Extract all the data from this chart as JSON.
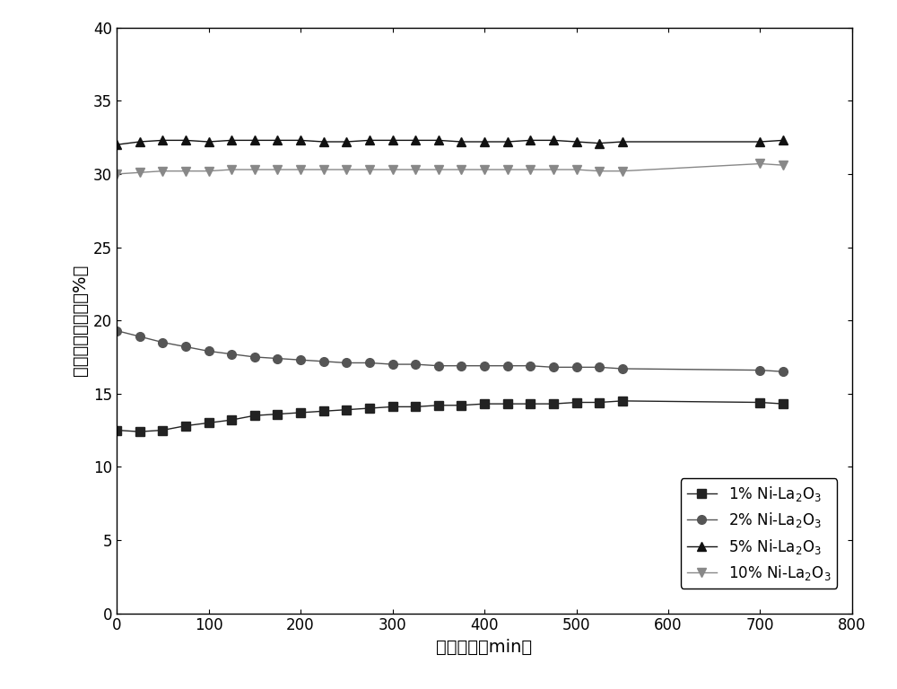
{
  "xlabel": "反应时间（min）",
  "ylabel": "二氧化碳转化率（%）",
  "xlim": [
    0,
    800
  ],
  "ylim": [
    0,
    40
  ],
  "xticks": [
    0,
    100,
    200,
    300,
    400,
    500,
    600,
    700,
    800
  ],
  "yticks": [
    0,
    5,
    10,
    15,
    20,
    25,
    30,
    35,
    40
  ],
  "series": [
    {
      "label": "1% Ni-La$_2$O$_3$",
      "color": "#222222",
      "marker": "s",
      "x": [
        0,
        25,
        50,
        75,
        100,
        125,
        150,
        175,
        200,
        225,
        250,
        275,
        300,
        325,
        350,
        375,
        400,
        425,
        450,
        475,
        500,
        525,
        550,
        700,
        725
      ],
      "y": [
        12.5,
        12.4,
        12.5,
        12.8,
        13.0,
        13.2,
        13.5,
        13.6,
        13.7,
        13.8,
        13.9,
        14.0,
        14.1,
        14.1,
        14.2,
        14.2,
        14.3,
        14.3,
        14.3,
        14.3,
        14.4,
        14.4,
        14.5,
        14.4,
        14.3
      ]
    },
    {
      "label": "2% Ni-La$_2$O$_3$",
      "color": "#555555",
      "marker": "o",
      "x": [
        0,
        25,
        50,
        75,
        100,
        125,
        150,
        175,
        200,
        225,
        250,
        275,
        300,
        325,
        350,
        375,
        400,
        425,
        450,
        475,
        500,
        525,
        550,
        700,
        725
      ],
      "y": [
        19.3,
        18.9,
        18.5,
        18.2,
        17.9,
        17.7,
        17.5,
        17.4,
        17.3,
        17.2,
        17.1,
        17.1,
        17.0,
        17.0,
        16.9,
        16.9,
        16.9,
        16.9,
        16.9,
        16.8,
        16.8,
        16.8,
        16.7,
        16.6,
        16.5
      ]
    },
    {
      "label": "5% Ni-La$_2$O$_3$",
      "color": "#111111",
      "marker": "^",
      "x": [
        0,
        25,
        50,
        75,
        100,
        125,
        150,
        175,
        200,
        225,
        250,
        275,
        300,
        325,
        350,
        375,
        400,
        425,
        450,
        475,
        500,
        525,
        550,
        700,
        725
      ],
      "y": [
        32.0,
        32.2,
        32.3,
        32.3,
        32.2,
        32.3,
        32.3,
        32.3,
        32.3,
        32.2,
        32.2,
        32.3,
        32.3,
        32.3,
        32.3,
        32.2,
        32.2,
        32.2,
        32.3,
        32.3,
        32.2,
        32.1,
        32.2,
        32.2,
        32.3
      ]
    },
    {
      "label": "10% Ni-La$_2$O$_3$",
      "color": "#888888",
      "marker": "v",
      "x": [
        0,
        25,
        50,
        75,
        100,
        125,
        150,
        175,
        200,
        225,
        250,
        275,
        300,
        325,
        350,
        375,
        400,
        425,
        450,
        475,
        500,
        525,
        550,
        700,
        725
      ],
      "y": [
        30.0,
        30.1,
        30.2,
        30.2,
        30.2,
        30.3,
        30.3,
        30.3,
        30.3,
        30.3,
        30.3,
        30.3,
        30.3,
        30.3,
        30.3,
        30.3,
        30.3,
        30.3,
        30.3,
        30.3,
        30.3,
        30.2,
        30.2,
        30.7,
        30.6
      ]
    }
  ],
  "line_color": "#aaaaaa",
  "marker_size": 7,
  "line_width": 1.0,
  "font_size_label": 14,
  "font_size_tick": 12,
  "font_size_legend": 12
}
